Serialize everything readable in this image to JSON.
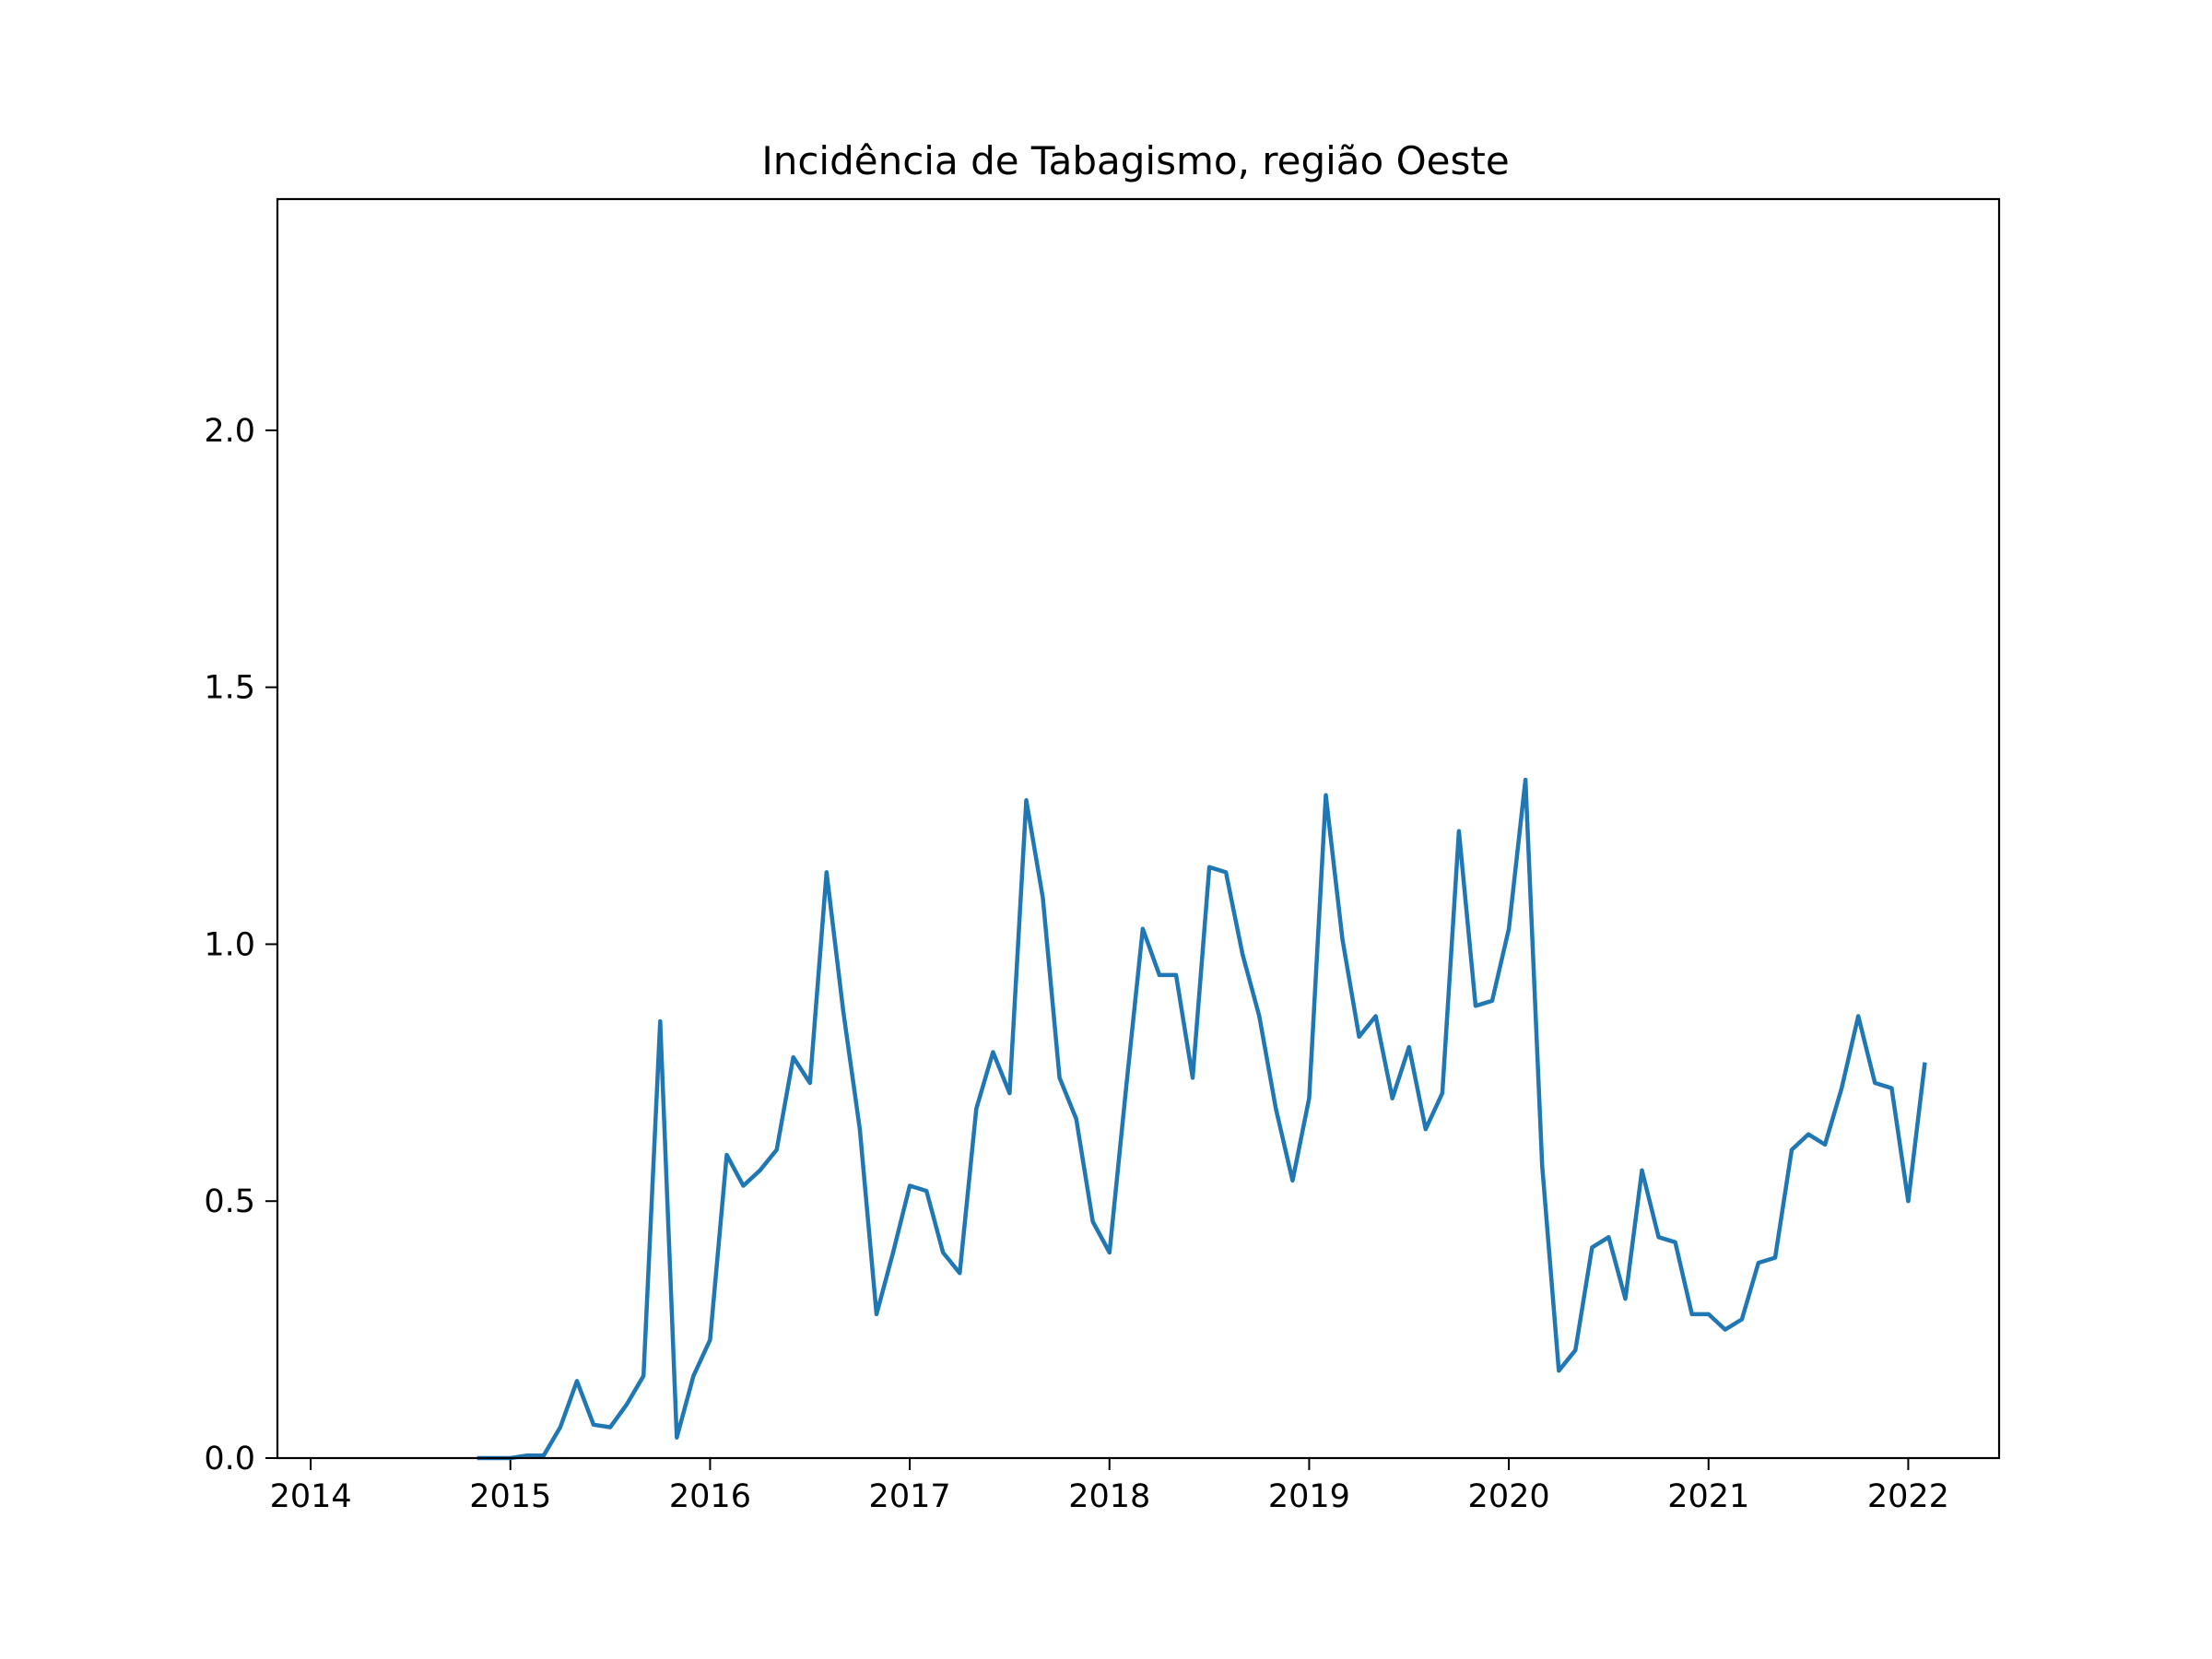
{
  "chart_data": {
    "type": "line",
    "title": "Incidência de Tabagismo, região Oeste",
    "xlabel": "",
    "ylabel": "",
    "xlim": [
      "2013-11-01",
      "2022-06-15"
    ],
    "ylim": [
      0,
      2.45
    ],
    "xticks": [
      "2014",
      "2015",
      "2016",
      "2017",
      "2018",
      "2019",
      "2020",
      "2021",
      "2022"
    ],
    "yticks": [
      "0.0",
      "0.5",
      "1.0",
      "1.5",
      "2.0"
    ],
    "grid": false,
    "legend": "none",
    "colors": {
      "line": "#1f77b4",
      "axes": "#000000",
      "background": "#ffffff"
    },
    "series": [
      {
        "x": [
          "2014-11",
          "2014-12",
          "2015-01",
          "2015-02",
          "2015-03",
          "2015-04",
          "2015-05",
          "2015-06",
          "2015-07",
          "2015-08",
          "2015-09",
          "2015-10",
          "2015-11",
          "2015-12",
          "2016-01",
          "2016-02",
          "2016-03",
          "2016-04",
          "2016-05",
          "2016-06",
          "2016-07",
          "2016-08",
          "2016-09",
          "2016-10",
          "2016-11",
          "2016-12",
          "2017-01",
          "2017-02",
          "2017-03",
          "2017-04",
          "2017-05",
          "2017-06",
          "2017-07",
          "2017-08",
          "2017-09",
          "2017-10",
          "2017-11",
          "2017-12",
          "2018-01",
          "2018-02",
          "2018-03",
          "2018-04",
          "2018-05",
          "2018-06",
          "2018-07",
          "2018-08",
          "2018-09",
          "2018-10",
          "2018-11",
          "2018-12",
          "2019-01",
          "2019-02",
          "2019-03",
          "2019-04",
          "2019-05",
          "2019-06",
          "2019-07",
          "2019-08",
          "2019-09",
          "2019-10",
          "2019-11",
          "2019-12",
          "2020-01",
          "2020-02",
          "2020-03",
          "2020-04",
          "2020-05",
          "2020-06",
          "2020-07",
          "2020-08",
          "2020-09",
          "2020-10",
          "2020-11",
          "2020-12",
          "2021-01",
          "2021-02",
          "2021-03",
          "2021-04",
          "2021-05",
          "2021-06",
          "2021-07",
          "2021-08",
          "2021-09",
          "2021-10",
          "2021-11",
          "2021-12",
          "2022-01",
          "2022-02"
        ],
        "values": [
          0.0,
          0.0,
          0.0,
          0.005,
          0.005,
          0.06,
          0.15,
          0.065,
          0.06,
          0.105,
          0.16,
          0.85,
          0.04,
          0.16,
          0.23,
          0.59,
          0.53,
          0.56,
          0.6,
          0.78,
          0.73,
          1.14,
          0.87,
          0.64,
          0.28,
          0.4,
          0.53,
          0.52,
          0.4,
          0.36,
          0.68,
          0.79,
          0.71,
          1.28,
          1.09,
          0.74,
          0.66,
          0.46,
          0.4,
          0.72,
          1.03,
          0.94,
          0.94,
          0.74,
          1.15,
          1.14,
          0.98,
          0.86,
          0.68,
          0.54,
          0.7,
          1.29,
          1.01,
          0.82,
          0.86,
          0.7,
          0.8,
          0.64,
          0.71,
          1.22,
          0.88,
          0.89,
          1.03,
          1.32,
          0.57,
          0.17,
          0.21,
          0.41,
          0.43,
          0.31,
          0.56,
          0.43,
          0.42,
          0.28,
          0.28,
          0.25,
          0.27,
          0.38,
          0.39,
          0.6,
          0.63,
          0.61,
          0.72,
          0.86,
          0.73,
          0.72,
          0.5,
          0.77
        ]
      }
    ]
  }
}
